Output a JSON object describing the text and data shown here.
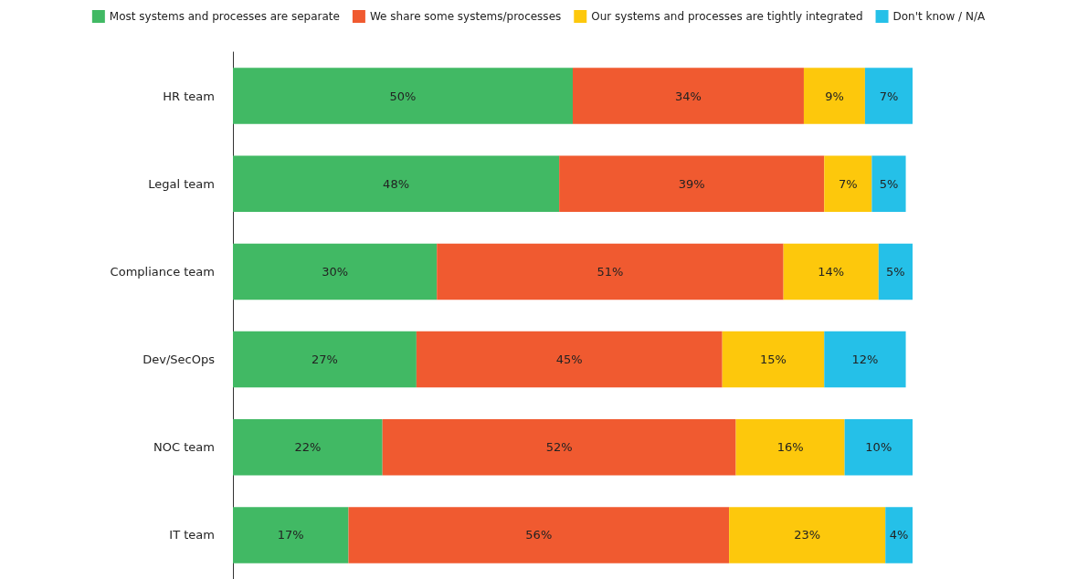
{
  "chart_data": {
    "type": "bar",
    "orientation": "horizontal",
    "stacked": true,
    "legend": "top",
    "categories": [
      "HR team",
      "Legal team",
      "Compliance team",
      "Dev/SecOps",
      "NOC team",
      "IT team"
    ],
    "series": [
      {
        "name": "Most systems and processes are separate",
        "color": "#41b964",
        "values": [
          50,
          48,
          30,
          27,
          22,
          17
        ],
        "value_labels": [
          "50%",
          "48%",
          "30%",
          "27%",
          "22%",
          "17%"
        ]
      },
      {
        "name": "We share some systems/processes",
        "color": "#f05a30",
        "values": [
          34,
          39,
          51,
          45,
          52,
          56
        ],
        "value_labels": [
          "34%",
          "39%",
          "51%",
          "45%",
          "52%",
          "56%"
        ]
      },
      {
        "name": "Our systems and processes are tightly integrated",
        "color": "#fdc80c",
        "values": [
          9,
          7,
          14,
          15,
          16,
          23
        ],
        "value_labels": [
          "9%",
          "7%",
          "14%",
          "15%",
          "16%",
          "23%"
        ]
      },
      {
        "name": "Don't know / N/A",
        "color": "#25c0e8",
        "values": [
          7,
          5,
          5,
          12,
          10,
          4
        ],
        "value_labels": [
          "7%",
          "5%",
          "5%",
          "12%",
          "10%",
          "4%"
        ]
      }
    ]
  }
}
